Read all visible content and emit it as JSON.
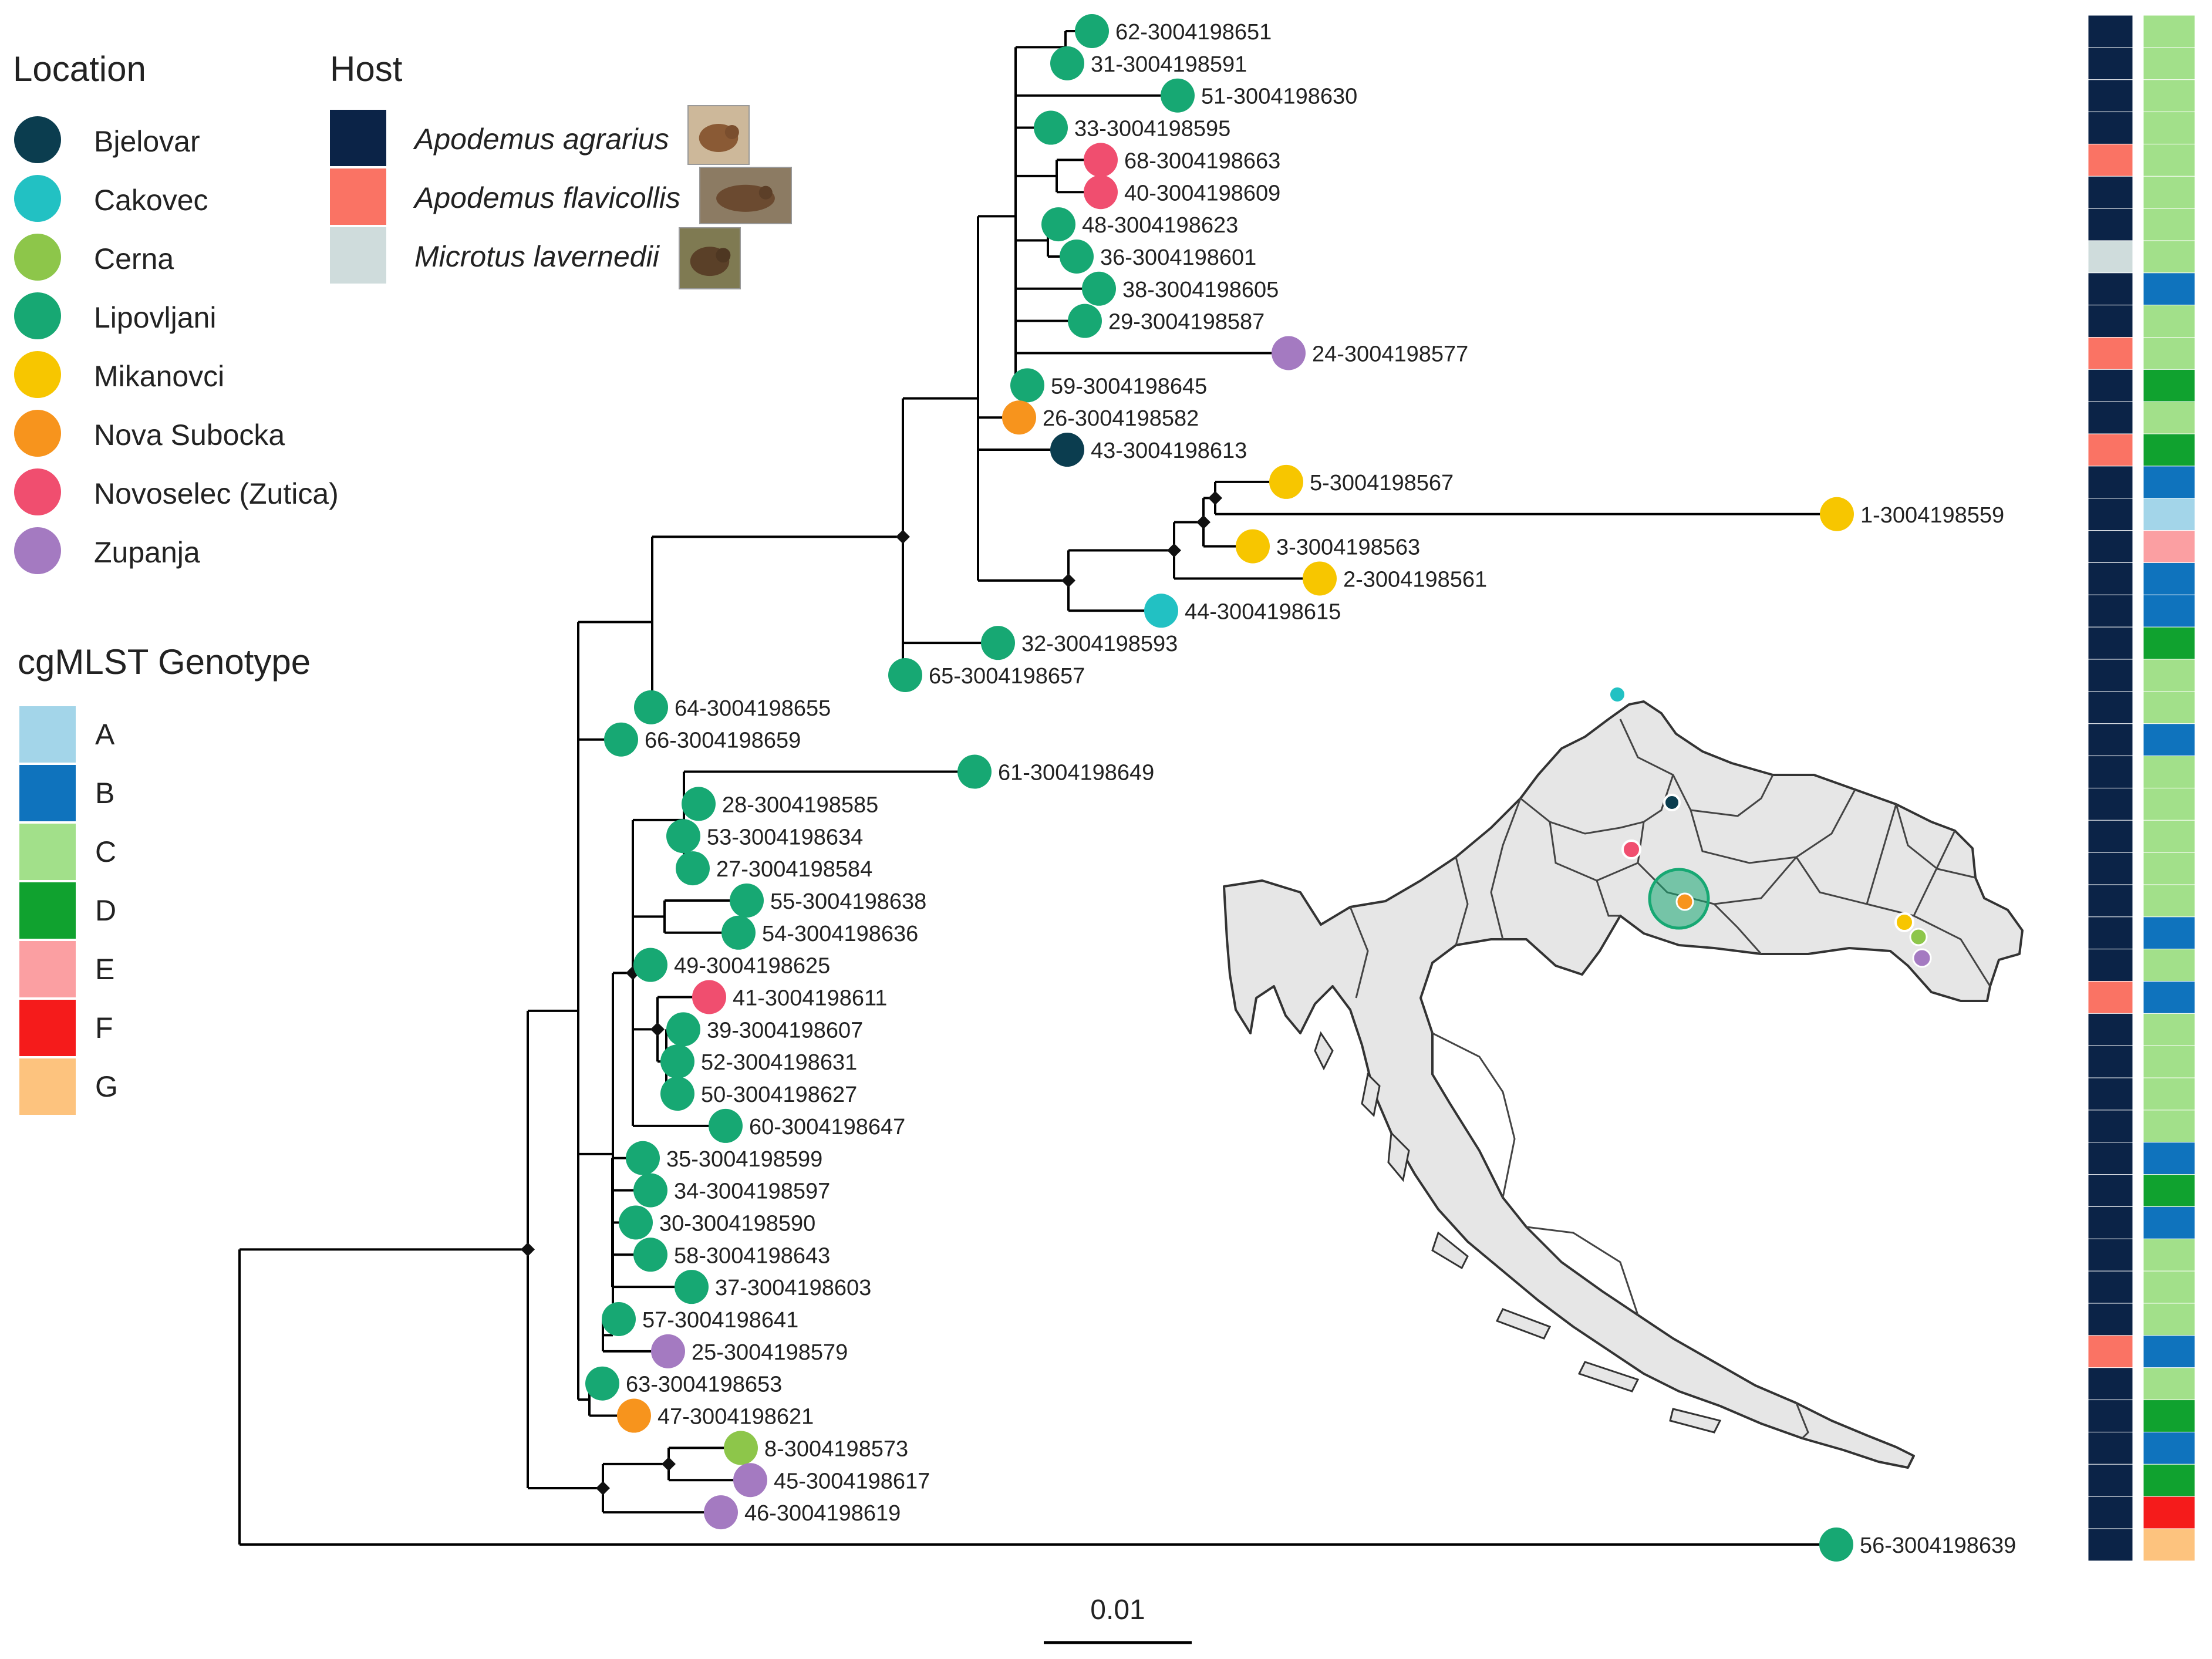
{
  "colors": {
    "location": {
      "Bjelovar": "#0b3d4f",
      "Cakovec": "#22c1c3",
      "Cerna": "#8dc64a",
      "Lipovljani": "#17a873",
      "Mikanovci": "#f7c600",
      "Nova Subocka": "#f7941d",
      "Novoselec (Zutica)": "#f04e6f",
      "Zupanja": "#a47ac1"
    },
    "host": {
      "Apodemus agrarius": "#0b2347",
      "Apodemus flavicollis": "#fa7364",
      "Microtus lavernedii": "#cfdcdc"
    },
    "genotype": {
      "A": "#a3d5e9",
      "B": "#0f73bd",
      "C": "#a2e08a",
      "D": "#10a22f",
      "E": "#fb9fa2",
      "F": "#f51b1b",
      "G": "#fdc37e"
    },
    "branch": "#000000",
    "map_fill": "#e6e6e6",
    "map_stroke": "#333333"
  },
  "legends": {
    "location_title": "Location",
    "locations": [
      "Bjelovar",
      "Cakovec",
      "Cerna",
      "Lipovljani",
      "Mikanovci",
      "Nova Subocka",
      "Novoselec (Zutica)",
      "Zupanja"
    ],
    "host_title": "Host",
    "hosts": [
      "Apodemus agrarius",
      "Apodemus flavicollis",
      "Microtus lavernedii"
    ],
    "genotype_title": "cgMLST Genotype",
    "genotypes": [
      "A",
      "B",
      "C",
      "D",
      "E",
      "F",
      "G"
    ]
  },
  "scale_bar": {
    "label": "0.01"
  },
  "tree": {
    "tips": [
      {
        "label": "62-3004198651",
        "location": "Lipovljani",
        "host": "Apodemus agrarius",
        "genotype": "C"
      },
      {
        "label": "31-3004198591",
        "location": "Lipovljani",
        "host": "Apodemus agrarius",
        "genotype": "C"
      },
      {
        "label": "51-3004198630",
        "location": "Lipovljani",
        "host": "Apodemus agrarius",
        "genotype": "C"
      },
      {
        "label": "33-3004198595",
        "location": "Lipovljani",
        "host": "Apodemus agrarius",
        "genotype": "C"
      },
      {
        "label": "68-3004198663",
        "location": "Novoselec (Zutica)",
        "host": "Apodemus flavicollis",
        "genotype": "C"
      },
      {
        "label": "40-3004198609",
        "location": "Novoselec (Zutica)",
        "host": "Apodemus agrarius",
        "genotype": "C"
      },
      {
        "label": "48-3004198623",
        "location": "Lipovljani",
        "host": "Apodemus agrarius",
        "genotype": "C"
      },
      {
        "label": "36-3004198601",
        "location": "Lipovljani",
        "host": "Microtus lavernedii",
        "genotype": "C"
      },
      {
        "label": "38-3004198605",
        "location": "Lipovljani",
        "host": "Apodemus agrarius",
        "genotype": "B"
      },
      {
        "label": "29-3004198587",
        "location": "Lipovljani",
        "host": "Apodemus agrarius",
        "genotype": "C"
      },
      {
        "label": "24-3004198577",
        "location": "Zupanja",
        "host": "Apodemus flavicollis",
        "genotype": "C"
      },
      {
        "label": "59-3004198645",
        "location": "Lipovljani",
        "host": "Apodemus agrarius",
        "genotype": "D"
      },
      {
        "label": "26-3004198582",
        "location": "Nova Subocka",
        "host": "Apodemus agrarius",
        "genotype": "C"
      },
      {
        "label": "43-3004198613",
        "location": "Bjelovar",
        "host": "Apodemus flavicollis",
        "genotype": "D"
      },
      {
        "label": "5-3004198567",
        "location": "Mikanovci",
        "host": "Apodemus agrarius",
        "genotype": "B"
      },
      {
        "label": "1-3004198559",
        "location": "Mikanovci",
        "host": "Apodemus agrarius",
        "genotype": "A"
      },
      {
        "label": "3-3004198563",
        "location": "Mikanovci",
        "host": "Apodemus agrarius",
        "genotype": "E"
      },
      {
        "label": "2-3004198561",
        "location": "Mikanovci",
        "host": "Apodemus agrarius",
        "genotype": "B"
      },
      {
        "label": "44-3004198615",
        "location": "Cakovec",
        "host": "Apodemus agrarius",
        "genotype": "B"
      },
      {
        "label": "32-3004198593",
        "location": "Lipovljani",
        "host": "Apodemus agrarius",
        "genotype": "D"
      },
      {
        "label": "65-3004198657",
        "location": "Lipovljani",
        "host": "Apodemus agrarius",
        "genotype": "C"
      },
      {
        "label": "64-3004198655",
        "location": "Lipovljani",
        "host": "Apodemus agrarius",
        "genotype": "C"
      },
      {
        "label": "66-3004198659",
        "location": "Lipovljani",
        "host": "Apodemus agrarius",
        "genotype": "B"
      },
      {
        "label": "61-3004198649",
        "location": "Lipovljani",
        "host": "Apodemus agrarius",
        "genotype": "C"
      },
      {
        "label": "28-3004198585",
        "location": "Lipovljani",
        "host": "Apodemus agrarius",
        "genotype": "C"
      },
      {
        "label": "53-3004198634",
        "location": "Lipovljani",
        "host": "Apodemus agrarius",
        "genotype": "C"
      },
      {
        "label": "27-3004198584",
        "location": "Lipovljani",
        "host": "Apodemus agrarius",
        "genotype": "C"
      },
      {
        "label": "55-3004198638",
        "location": "Lipovljani",
        "host": "Apodemus agrarius",
        "genotype": "C"
      },
      {
        "label": "54-3004198636",
        "location": "Lipovljani",
        "host": "Apodemus agrarius",
        "genotype": "B"
      },
      {
        "label": "49-3004198625",
        "location": "Lipovljani",
        "host": "Apodemus agrarius",
        "genotype": "C"
      },
      {
        "label": "41-3004198611",
        "location": "Novoselec (Zutica)",
        "host": "Apodemus flavicollis",
        "genotype": "B"
      },
      {
        "label": "39-3004198607",
        "location": "Lipovljani",
        "host": "Apodemus agrarius",
        "genotype": "C"
      },
      {
        "label": "52-3004198631",
        "location": "Lipovljani",
        "host": "Apodemus agrarius",
        "genotype": "C"
      },
      {
        "label": "50-3004198627",
        "location": "Lipovljani",
        "host": "Apodemus agrarius",
        "genotype": "C"
      },
      {
        "label": "60-3004198647",
        "location": "Lipovljani",
        "host": "Apodemus agrarius",
        "genotype": "C"
      },
      {
        "label": "35-3004198599",
        "location": "Lipovljani",
        "host": "Apodemus agrarius",
        "genotype": "B"
      },
      {
        "label": "34-3004198597",
        "location": "Lipovljani",
        "host": "Apodemus agrarius",
        "genotype": "D"
      },
      {
        "label": "30-3004198590",
        "location": "Lipovljani",
        "host": "Apodemus agrarius",
        "genotype": "B"
      },
      {
        "label": "58-3004198643",
        "location": "Lipovljani",
        "host": "Apodemus agrarius",
        "genotype": "C"
      },
      {
        "label": "37-3004198603",
        "location": "Lipovljani",
        "host": "Apodemus agrarius",
        "genotype": "C"
      },
      {
        "label": "57-3004198641",
        "location": "Lipovljani",
        "host": "Apodemus agrarius",
        "genotype": "C"
      },
      {
        "label": "25-3004198579",
        "location": "Zupanja",
        "host": "Apodemus flavicollis",
        "genotype": "B"
      },
      {
        "label": "63-3004198653",
        "location": "Lipovljani",
        "host": "Apodemus agrarius",
        "genotype": "C"
      },
      {
        "label": "47-3004198621",
        "location": "Nova Subocka",
        "host": "Apodemus agrarius",
        "genotype": "D"
      },
      {
        "label": "8-3004198573",
        "location": "Cerna",
        "host": "Apodemus agrarius",
        "genotype": "B"
      },
      {
        "label": "45-3004198617",
        "location": "Zupanja",
        "host": "Apodemus agrarius",
        "genotype": "D"
      },
      {
        "label": "46-3004198619",
        "location": "Zupanja",
        "host": "Apodemus agrarius",
        "genotype": "F"
      },
      {
        "label": "56-3004198639",
        "location": "Lipovljani",
        "host": "Apodemus agrarius",
        "genotype": "G"
      }
    ]
  }
}
